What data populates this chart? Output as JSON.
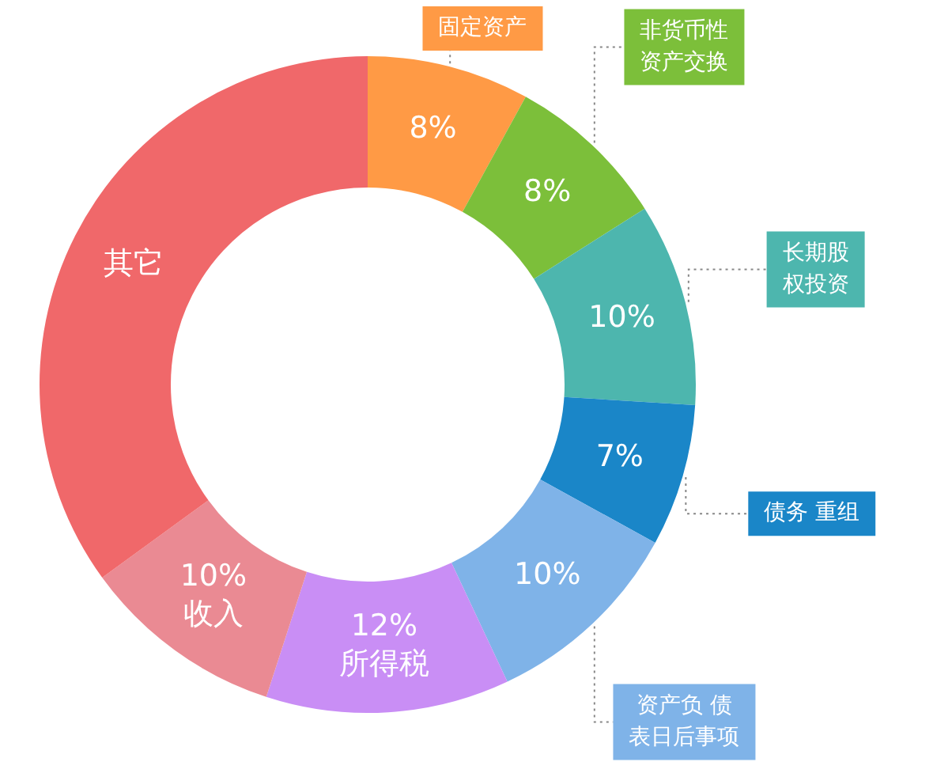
{
  "chart_data": {
    "type": "donut",
    "categories": [
      "固定资产",
      "非货币性资产交换",
      "长期股权投资",
      "债务 重组",
      "资产负 债表日后事项",
      "所得税",
      "收入",
      "其它"
    ],
    "values": [
      8,
      8,
      10,
      7,
      10,
      12,
      10,
      35
    ],
    "value_labels": [
      "8%",
      "8%",
      "10%",
      "7%",
      "10%",
      "12%",
      "10%",
      null
    ],
    "colors": [
      "#ff9a45",
      "#7cbf3a",
      "#4db6ae",
      "#1a86c8",
      "#7fb3e8",
      "#c98ef5",
      "#ea8a93",
      "#f0686a"
    ],
    "legend": false
  }
}
